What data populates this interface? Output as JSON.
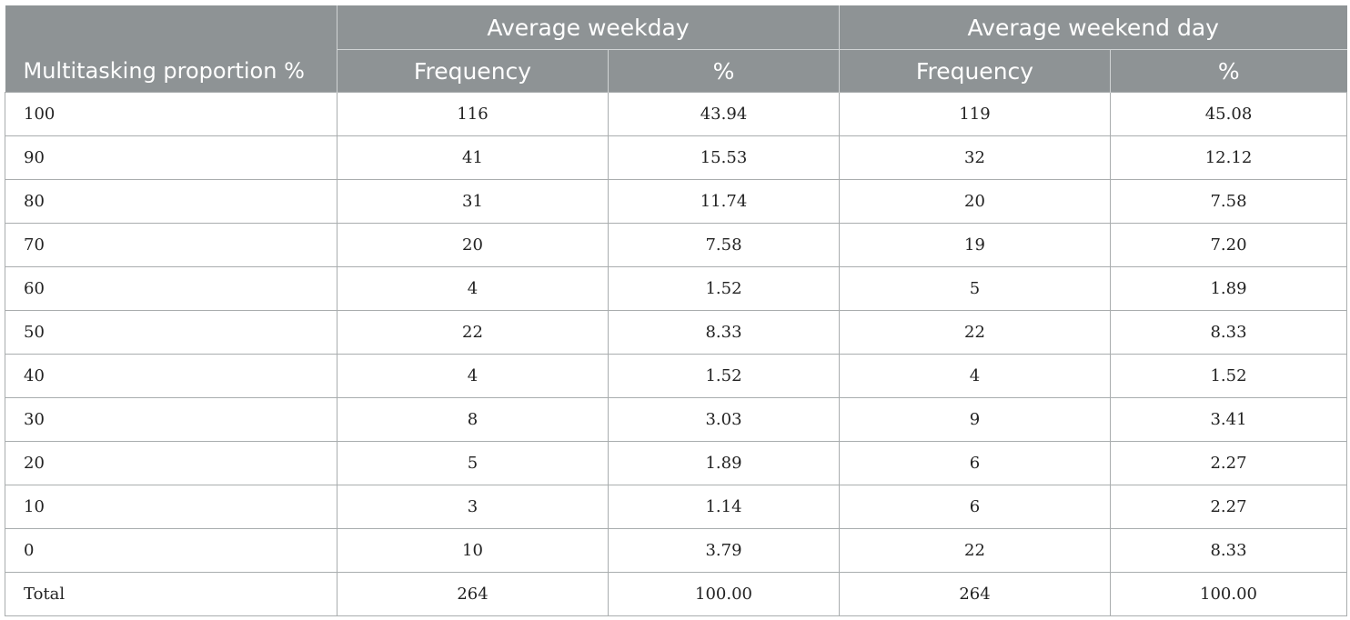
{
  "table": {
    "stub_header": "Multitasking proportion %",
    "groups": [
      "Average weekday",
      "Average weekend day"
    ],
    "subheaders": [
      "Frequency",
      "%",
      "Frequency",
      "%"
    ],
    "rows": [
      [
        "100",
        "116",
        "43.94",
        "119",
        "45.08"
      ],
      [
        "90",
        "41",
        "15.53",
        "32",
        "12.12"
      ],
      [
        "80",
        "31",
        "11.74",
        "20",
        "7.58"
      ],
      [
        "70",
        "20",
        "7.58",
        "19",
        "7.20"
      ],
      [
        "60",
        "4",
        "1.52",
        "5",
        "1.89"
      ],
      [
        "50",
        "22",
        "8.33",
        "22",
        "8.33"
      ],
      [
        "40",
        "4",
        "1.52",
        "4",
        "1.52"
      ],
      [
        "30",
        "8",
        "3.03",
        "9",
        "3.41"
      ],
      [
        "20",
        "5",
        "1.89",
        "6",
        "2.27"
      ],
      [
        "10",
        "3",
        "1.14",
        "6",
        "2.27"
      ],
      [
        "0",
        "10",
        "3.79",
        "22",
        "8.33"
      ],
      [
        "Total",
        "264",
        "100.00",
        "264",
        "100.00"
      ]
    ]
  }
}
